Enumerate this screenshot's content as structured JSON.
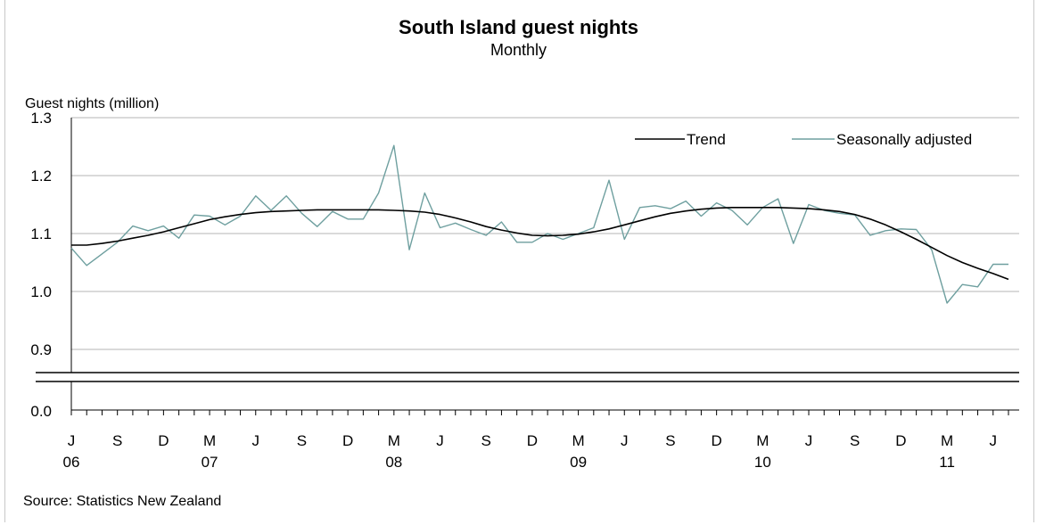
{
  "chart_data": {
    "type": "line",
    "title": "South Island guest nights",
    "subtitle": "Monthly",
    "ylabel": "Guest nights (million)",
    "xlabel": "",
    "source": "Source: Statistics New Zealand",
    "ylim": [
      0.85,
      1.3
    ],
    "y_ticks": [
      "1.3",
      "1.2",
      "1.1",
      "1.0",
      "0.9",
      "0.0"
    ],
    "y_break": true,
    "x_ticks": [
      {
        "label": "J",
        "year": "06"
      },
      {
        "label": "S",
        "year": ""
      },
      {
        "label": "D",
        "year": ""
      },
      {
        "label": "M",
        "year": "07"
      },
      {
        "label": "J",
        "year": ""
      },
      {
        "label": "S",
        "year": ""
      },
      {
        "label": "D",
        "year": ""
      },
      {
        "label": "M",
        "year": "08"
      },
      {
        "label": "J",
        "year": ""
      },
      {
        "label": "S",
        "year": ""
      },
      {
        "label": "D",
        "year": ""
      },
      {
        "label": "M",
        "year": "09"
      },
      {
        "label": "J",
        "year": ""
      },
      {
        "label": "S",
        "year": ""
      },
      {
        "label": "D",
        "year": ""
      },
      {
        "label": "M",
        "year": "10"
      },
      {
        "label": "J",
        "year": ""
      },
      {
        "label": "S",
        "year": ""
      },
      {
        "label": "D",
        "year": ""
      },
      {
        "label": "M",
        "year": "11"
      },
      {
        "label": "J",
        "year": ""
      }
    ],
    "x_start": "2006-06",
    "x_end": "2011-07",
    "grid": true,
    "legend_position": "top-right",
    "series": [
      {
        "name": "Trend",
        "color": "#000000",
        "values": [
          1.08,
          1.08,
          1.083,
          1.087,
          1.092,
          1.097,
          1.103,
          1.11,
          1.117,
          1.124,
          1.129,
          1.133,
          1.136,
          1.138,
          1.139,
          1.14,
          1.141,
          1.141,
          1.141,
          1.141,
          1.141,
          1.14,
          1.139,
          1.137,
          1.133,
          1.127,
          1.12,
          1.112,
          1.106,
          1.101,
          1.097,
          1.096,
          1.097,
          1.099,
          1.103,
          1.108,
          1.115,
          1.122,
          1.129,
          1.135,
          1.139,
          1.142,
          1.144,
          1.145,
          1.145,
          1.145,
          1.145,
          1.144,
          1.143,
          1.141,
          1.138,
          1.133,
          1.125,
          1.115,
          1.103,
          1.09,
          1.076,
          1.062,
          1.05,
          1.04,
          1.031,
          1.021
        ]
      },
      {
        "name": "Seasonally adjusted",
        "color": "#6e9f9f",
        "values": [
          1.075,
          1.045,
          1.065,
          1.085,
          1.113,
          1.105,
          1.113,
          1.092,
          1.132,
          1.13,
          1.115,
          1.13,
          1.165,
          1.14,
          1.165,
          1.135,
          1.112,
          1.138,
          1.125,
          1.125,
          1.17,
          1.252,
          1.072,
          1.17,
          1.11,
          1.118,
          1.107,
          1.097,
          1.12,
          1.085,
          1.085,
          1.1,
          1.09,
          1.1,
          1.11,
          1.192,
          1.09,
          1.145,
          1.148,
          1.143,
          1.156,
          1.13,
          1.153,
          1.14,
          1.115,
          1.145,
          1.16,
          1.083,
          1.15,
          1.14,
          1.135,
          1.132,
          1.097,
          1.105,
          1.108,
          1.107,
          1.072,
          0.98,
          1.012,
          1.008,
          1.047,
          1.047
        ]
      }
    ]
  }
}
